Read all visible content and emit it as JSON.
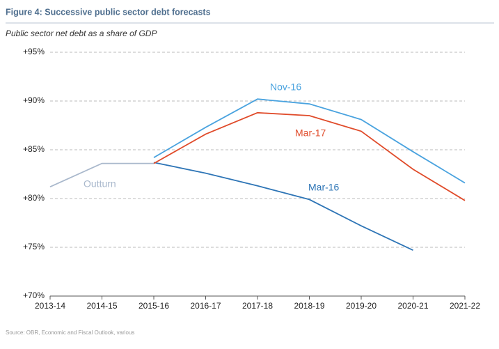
{
  "chart_data": {
    "type": "line",
    "title": "Figure 4:  Successive public sector debt forecasts",
    "subtitle": "Public sector net debt as a share of GDP",
    "source": "Source: OBR, Economic and Fiscal Outlook, various",
    "categories": [
      "2013-14",
      "2014-15",
      "2015-16",
      "2016-17",
      "2017-18",
      "2018-19",
      "2019-20",
      "2020-21",
      "2021-22"
    ],
    "series": [
      {
        "name": "Outturn",
        "color": "#a9b8cc",
        "values": [
          81.2,
          83.6,
          83.6,
          null,
          null,
          null,
          null,
          null,
          null
        ]
      },
      {
        "name": "Mar-16",
        "color": "#2e75b6",
        "values": [
          null,
          null,
          83.7,
          82.6,
          81.3,
          79.9,
          77.2,
          74.7,
          null
        ]
      },
      {
        "name": "Nov-16",
        "color": "#4aa3df",
        "values": [
          null,
          null,
          84.2,
          87.3,
          90.2,
          89.7,
          88.1,
          84.8,
          81.6
        ]
      },
      {
        "name": "Mar-17",
        "color": "#e04b2a",
        "values": [
          null,
          null,
          83.6,
          86.6,
          88.8,
          88.5,
          86.9,
          83.0,
          79.8
        ]
      }
    ],
    "ylim": [
      70,
      95
    ],
    "yticks": [
      {
        "value": 70,
        "label": "+70%"
      },
      {
        "value": 75,
        "label": "+75%"
      },
      {
        "value": 80,
        "label": "+80%"
      },
      {
        "value": 85,
        "label": "+85%"
      },
      {
        "value": 90,
        "label": "+90%"
      },
      {
        "value": 95,
        "label": "+95%"
      }
    ],
    "grid": true
  }
}
